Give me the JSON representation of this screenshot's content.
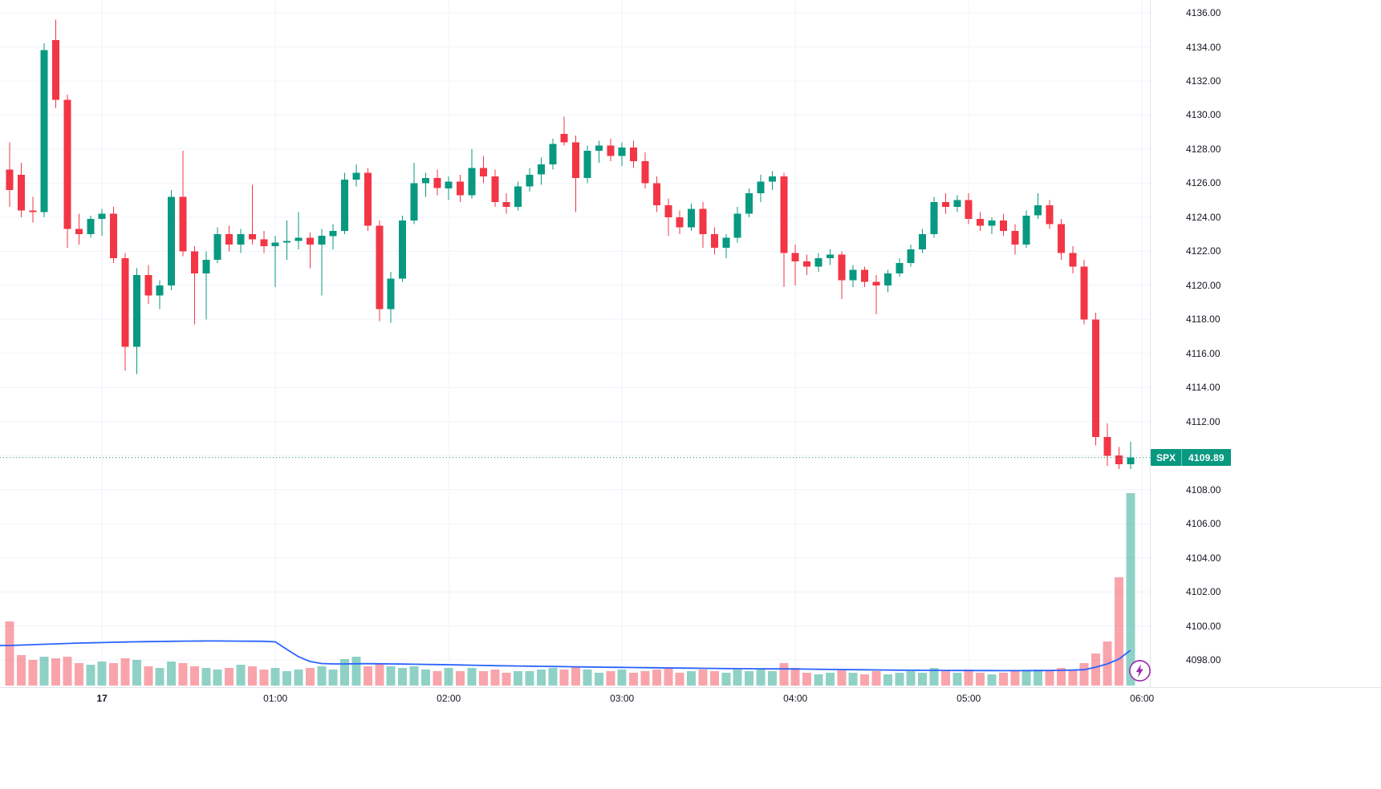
{
  "price_tag": {
    "symbol": "SPX",
    "price": "4109.89"
  },
  "colors": {
    "up": "#089981",
    "down": "#f23645",
    "volume_opacity_hint": "0.45",
    "ma_line": "#2962ff",
    "grid": "#f0f3fa",
    "axis_text": "#131722",
    "axis_border": "#e0e3eb",
    "background": "#ffffff",
    "price_line": "#089981",
    "tag_bg": "#089981",
    "tag_text": "#ffffff",
    "bolt": "#9c27b0"
  },
  "chart_data": {
    "type": "candlestick",
    "series_name": "SPX",
    "last_price": 4109.89,
    "volume_overlay": true,
    "grid": true,
    "ylim_price": [
      4096.5,
      4136.8
    ],
    "price_grid": {
      "min": 4098,
      "max": 4136,
      "step": 2
    },
    "y_axis_labels": [
      "4136.00",
      "4134.00",
      "4132.00",
      "4130.00",
      "4128.00",
      "4126.00",
      "4124.00",
      "4122.00",
      "4120.00",
      "4118.00",
      "4116.00",
      "4114.00",
      "4112.00",
      "4108.00",
      "4106.00",
      "4104.00",
      "4102.00",
      "4100.00",
      "4098.00"
    ],
    "x_axis_labels": [
      {
        "text": "17",
        "candle_index": 8,
        "bold": true
      },
      {
        "text": "01:00",
        "candle_index": 23,
        "bold": false
      },
      {
        "text": "02:00",
        "candle_index": 38,
        "bold": false
      },
      {
        "text": "03:00",
        "candle_index": 53,
        "bold": false
      },
      {
        "text": "04:00",
        "candle_index": 68,
        "bold": false
      },
      {
        "text": "05:00",
        "candle_index": 83,
        "bold": false
      },
      {
        "text": "06:00",
        "candle_index": 98,
        "bold": false
      }
    ],
    "ohlc_columns": [
      "open",
      "high",
      "low",
      "close",
      "volume_relative"
    ],
    "candles": [
      [
        4126.8,
        4128.4,
        4124.6,
        4125.6,
        80
      ],
      [
        4126.5,
        4127.2,
        4124.0,
        4124.4,
        38
      ],
      [
        4124.4,
        4125.2,
        4123.7,
        4124.3,
        32
      ],
      [
        4124.3,
        4134.2,
        4124.0,
        4133.8,
        36
      ],
      [
        4134.4,
        4135.6,
        4130.4,
        4130.9,
        34
      ],
      [
        4130.9,
        4131.2,
        4122.2,
        4123.3,
        36
      ],
      [
        4123.3,
        4124.2,
        4122.4,
        4123.0,
        28
      ],
      [
        4123.0,
        4124.1,
        4122.8,
        4123.9,
        26
      ],
      [
        4123.9,
        4124.5,
        4122.9,
        4124.2,
        30
      ],
      [
        4124.2,
        4124.6,
        4121.3,
        4121.6,
        28
      ],
      [
        4121.6,
        4121.9,
        4115.0,
        4116.4,
        34
      ],
      [
        4116.4,
        4121.0,
        4114.8,
        4120.6,
        32
      ],
      [
        4120.6,
        4121.2,
        4118.9,
        4119.4,
        24
      ],
      [
        4119.4,
        4120.3,
        4118.6,
        4120.0,
        22
      ],
      [
        4120.0,
        4125.6,
        4119.7,
        4125.2,
        30
      ],
      [
        4125.2,
        4127.9,
        4121.7,
        4122.0,
        28
      ],
      [
        4122.0,
        4122.3,
        4117.7,
        4120.7,
        24
      ],
      [
        4120.7,
        4122.0,
        4118.0,
        4121.5,
        22
      ],
      [
        4121.5,
        4123.4,
        4121.3,
        4123.0,
        20
      ],
      [
        4123.0,
        4123.5,
        4122.0,
        4122.4,
        22
      ],
      [
        4122.4,
        4123.3,
        4121.9,
        4123.0,
        26
      ],
      [
        4123.0,
        4125.9,
        4122.4,
        4122.7,
        24
      ],
      [
        4122.7,
        4123.2,
        4121.9,
        4122.3,
        20
      ],
      [
        4122.3,
        4122.9,
        4119.9,
        4122.5,
        22
      ],
      [
        4122.5,
        4123.8,
        4121.5,
        4122.6,
        18
      ],
      [
        4122.6,
        4124.3,
        4122.1,
        4122.8,
        20
      ],
      [
        4122.8,
        4123.1,
        4121.0,
        4122.4,
        22
      ],
      [
        4122.4,
        4123.3,
        4119.4,
        4122.9,
        24
      ],
      [
        4122.9,
        4123.6,
        4122.1,
        4123.2,
        20
      ],
      [
        4123.2,
        4126.6,
        4123.0,
        4126.2,
        33
      ],
      [
        4126.2,
        4127.1,
        4125.8,
        4126.6,
        36
      ],
      [
        4126.6,
        4126.9,
        4123.2,
        4123.5,
        24
      ],
      [
        4123.5,
        4123.8,
        4117.9,
        4118.6,
        28
      ],
      [
        4118.6,
        4120.8,
        4117.8,
        4120.4,
        24
      ],
      [
        4120.4,
        4124.1,
        4120.2,
        4123.8,
        22
      ],
      [
        4123.8,
        4127.2,
        4123.6,
        4126.0,
        24
      ],
      [
        4126.0,
        4126.6,
        4125.2,
        4126.3,
        20
      ],
      [
        4126.3,
        4126.8,
        4125.3,
        4125.7,
        18
      ],
      [
        4125.7,
        4126.4,
        4125.0,
        4126.1,
        22
      ],
      [
        4126.1,
        4126.5,
        4124.9,
        4125.3,
        18
      ],
      [
        4125.3,
        4128.0,
        4125.1,
        4126.9,
        22
      ],
      [
        4126.9,
        4127.6,
        4126.0,
        4126.4,
        18
      ],
      [
        4126.4,
        4126.8,
        4124.6,
        4124.9,
        20
      ],
      [
        4124.9,
        4125.4,
        4124.2,
        4124.6,
        16
      ],
      [
        4124.6,
        4126.1,
        4124.4,
        4125.8,
        18
      ],
      [
        4125.8,
        4126.9,
        4125.5,
        4126.5,
        18
      ],
      [
        4126.5,
        4127.5,
        4125.9,
        4127.1,
        20
      ],
      [
        4127.1,
        4128.6,
        4126.8,
        4128.3,
        22
      ],
      [
        4128.9,
        4129.9,
        4128.2,
        4128.4,
        20
      ],
      [
        4128.4,
        4128.8,
        4124.3,
        4126.3,
        24
      ],
      [
        4126.3,
        4128.2,
        4126.0,
        4127.9,
        20
      ],
      [
        4127.9,
        4128.5,
        4127.2,
        4128.2,
        16
      ],
      [
        4128.2,
        4128.6,
        4127.3,
        4127.6,
        18
      ],
      [
        4127.6,
        4128.4,
        4127.0,
        4128.1,
        20
      ],
      [
        4128.1,
        4128.5,
        4126.9,
        4127.3,
        16
      ],
      [
        4127.3,
        4127.8,
        4125.7,
        4126.0,
        18
      ],
      [
        4126.0,
        4126.4,
        4124.3,
        4124.7,
        20
      ],
      [
        4124.7,
        4125.1,
        4122.9,
        4124.0,
        22
      ],
      [
        4124.0,
        4124.4,
        4123.0,
        4123.4,
        16
      ],
      [
        4123.4,
        4124.8,
        4123.2,
        4124.5,
        18
      ],
      [
        4124.5,
        4124.9,
        4122.2,
        4123.0,
        20
      ],
      [
        4123.0,
        4123.4,
        4121.8,
        4122.2,
        18
      ],
      [
        4122.2,
        4123.0,
        4121.6,
        4122.8,
        16
      ],
      [
        4122.8,
        4124.6,
        4122.5,
        4124.2,
        20
      ],
      [
        4124.2,
        4125.7,
        4124.0,
        4125.4,
        18
      ],
      [
        4125.4,
        4126.5,
        4124.9,
        4126.1,
        20
      ],
      [
        4126.1,
        4126.7,
        4125.6,
        4126.4,
        18
      ],
      [
        4126.4,
        4126.6,
        4119.9,
        4121.9,
        28
      ],
      [
        4121.9,
        4122.4,
        4120.0,
        4121.4,
        22
      ],
      [
        4121.4,
        4121.8,
        4120.6,
        4121.1,
        16
      ],
      [
        4121.1,
        4121.9,
        4120.8,
        4121.6,
        14
      ],
      [
        4121.6,
        4122.1,
        4121.2,
        4121.8,
        16
      ],
      [
        4121.8,
        4122.0,
        4119.2,
        4120.3,
        20
      ],
      [
        4120.3,
        4121.2,
        4119.9,
        4120.9,
        16
      ],
      [
        4120.9,
        4121.1,
        4119.9,
        4120.2,
        14
      ],
      [
        4120.2,
        4120.6,
        4118.3,
        4120.0,
        18
      ],
      [
        4120.0,
        4120.9,
        4119.6,
        4120.7,
        14
      ],
      [
        4120.7,
        4121.6,
        4120.5,
        4121.3,
        16
      ],
      [
        4121.3,
        4122.4,
        4121.1,
        4122.1,
        18
      ],
      [
        4122.1,
        4123.3,
        4121.9,
        4123.0,
        16
      ],
      [
        4123.0,
        4125.2,
        4122.8,
        4124.9,
        22
      ],
      [
        4124.9,
        4125.4,
        4124.2,
        4124.6,
        18
      ],
      [
        4124.6,
        4125.3,
        4124.3,
        4125.0,
        16
      ],
      [
        4125.0,
        4125.4,
        4123.6,
        4123.9,
        20
      ],
      [
        4123.9,
        4124.3,
        4123.2,
        4123.5,
        16
      ],
      [
        4123.5,
        4124.0,
        4123.0,
        4123.8,
        14
      ],
      [
        4123.8,
        4124.2,
        4122.9,
        4123.2,
        16
      ],
      [
        4123.2,
        4123.6,
        4121.8,
        4122.4,
        18
      ],
      [
        4122.4,
        4124.4,
        4122.2,
        4124.1,
        18
      ],
      [
        4124.1,
        4125.4,
        4123.9,
        4124.7,
        20
      ],
      [
        4124.7,
        4125.0,
        4123.3,
        4123.6,
        18
      ],
      [
        4123.6,
        4123.9,
        4121.5,
        4121.9,
        22
      ],
      [
        4121.9,
        4122.3,
        4120.7,
        4121.1,
        20
      ],
      [
        4121.1,
        4121.5,
        4117.7,
        4118.0,
        28
      ],
      [
        4118.0,
        4118.4,
        4110.6,
        4111.1,
        40
      ],
      [
        4111.1,
        4111.9,
        4109.4,
        4110.0,
        55
      ],
      [
        4110.0,
        4110.5,
        4109.2,
        4109.5,
        135
      ],
      [
        4109.5,
        4110.8,
        4109.2,
        4109.89,
        240
      ]
    ],
    "volume_ma": [
      50,
      50.5,
      51,
      51.5,
      52,
      52.5,
      53,
      53.3,
      53.6,
      54,
      54.3,
      54.6,
      54.8,
      55,
      55.2,
      55.4,
      55.5,
      55.6,
      55.6,
      55.5,
      55.4,
      55.3,
      55.2,
      54.5,
      45,
      36,
      30,
      27.5,
      27,
      27,
      27.2,
      27.3,
      27.2,
      27,
      26.8,
      26.6,
      26.4,
      26.2,
      26,
      25.7,
      25.4,
      25.1,
      24.8,
      24.6,
      24.4,
      24.2,
      24,
      23.8,
      23.6,
      23.4,
      23.2,
      23,
      22.8,
      22.7,
      22.5,
      22.3,
      22.2,
      22,
      21.8,
      21.7,
      21.5,
      21.4,
      21.2,
      21.1,
      21,
      20.9,
      20.8,
      20.8,
      20.7,
      20.5,
      20.3,
      20.1,
      20,
      19.8,
      19.7,
      19.5,
      19.4,
      19.2,
      19.1,
      19,
      19,
      18.9,
      18.8,
      18.8,
      18.7,
      18.7,
      18.6,
      18.6,
      18.7,
      18.7,
      18.8,
      19,
      19.3,
      19.8,
      23,
      27,
      33,
      44
    ]
  }
}
